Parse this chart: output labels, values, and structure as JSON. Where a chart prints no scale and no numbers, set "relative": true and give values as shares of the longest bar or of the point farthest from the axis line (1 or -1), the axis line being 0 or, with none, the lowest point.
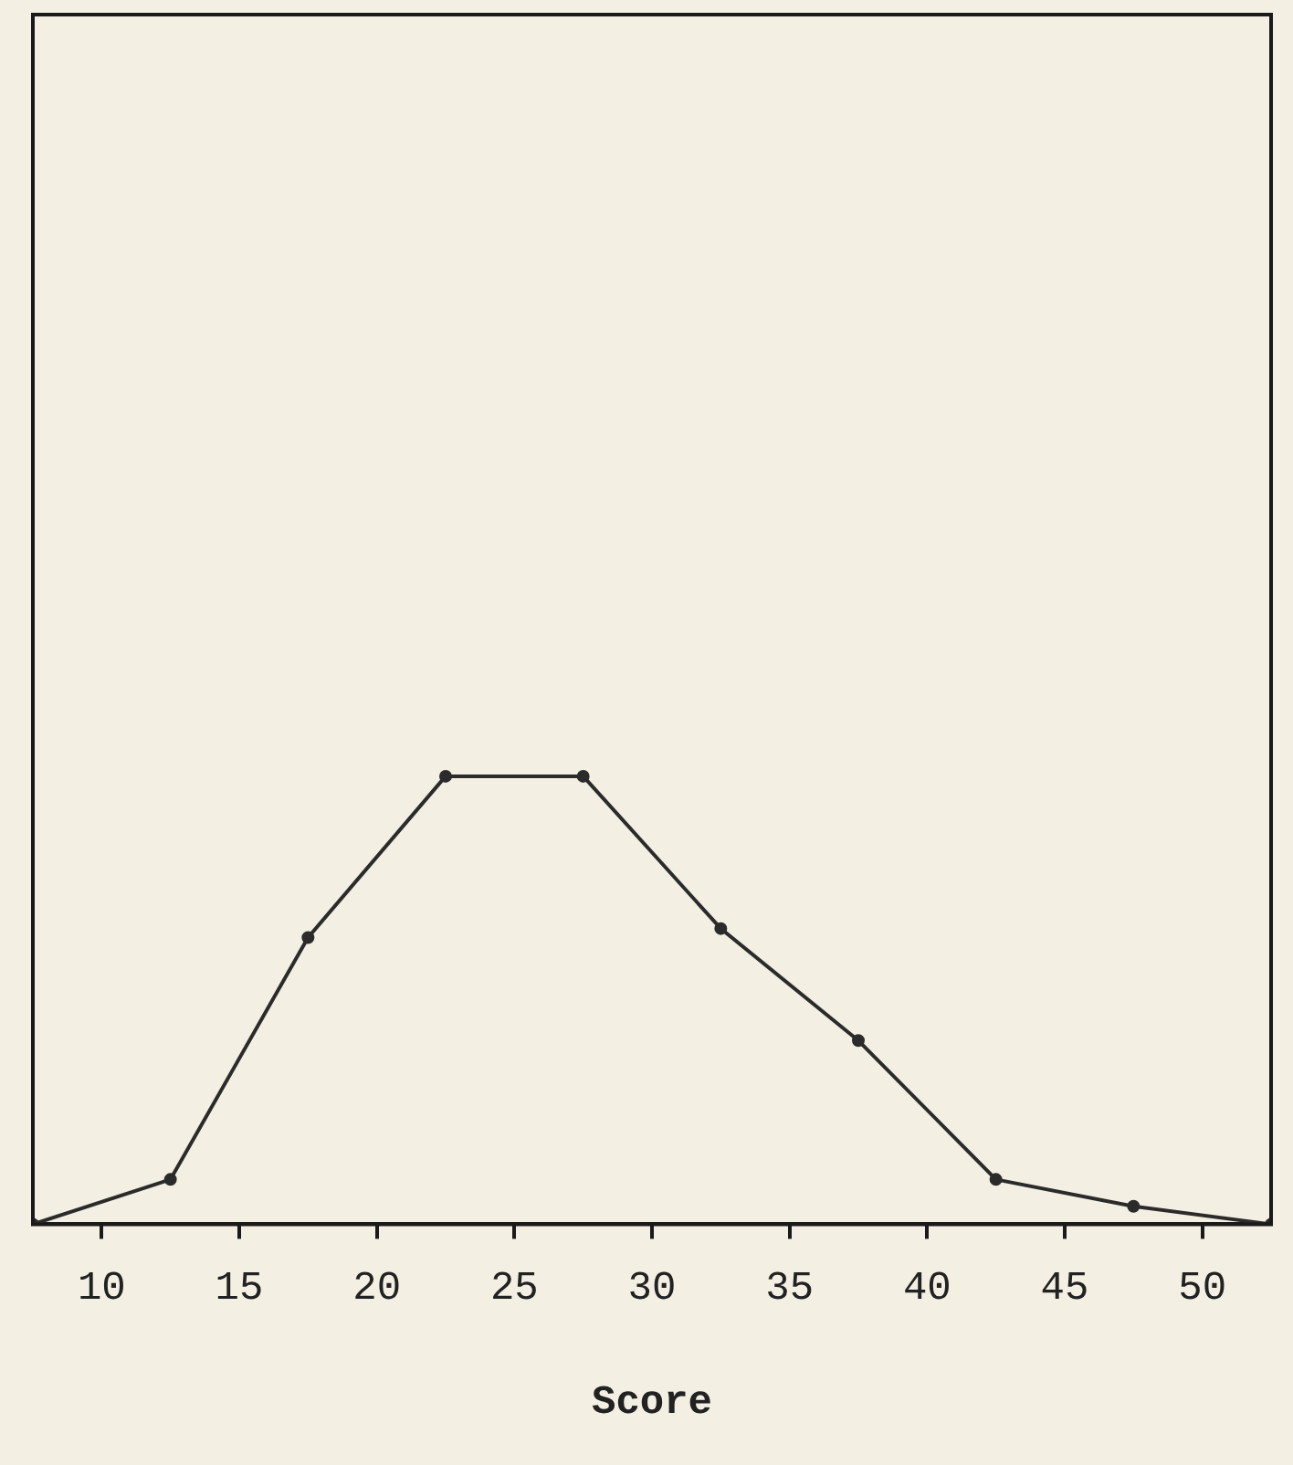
{
  "chart_data": {
    "type": "line",
    "xlabel": "Score",
    "relative": true,
    "x": [
      7.5,
      12.5,
      17.5,
      22.5,
      27.5,
      32.5,
      37.5,
      42.5,
      47.5,
      52.5
    ],
    "series": [
      {
        "color": "#2b2b2b",
        "values": [
          0,
          0.1,
          0.64,
          1,
          1,
          0.66,
          0.41,
          0.1,
          0.04,
          0
        ]
      }
    ],
    "xlim": [
      7.5,
      52.5
    ],
    "xticks": [
      10,
      15,
      20,
      25,
      30,
      35,
      40,
      45,
      50
    ],
    "marker": "circle",
    "line_style": "solid",
    "legend": false
  }
}
